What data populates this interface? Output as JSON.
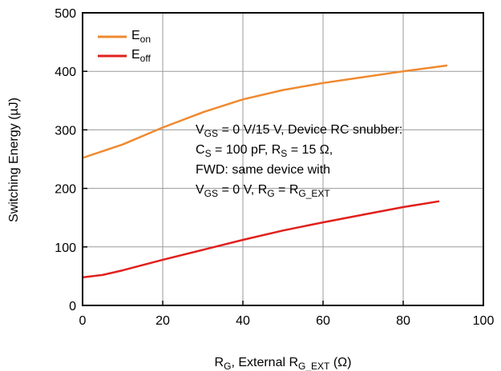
{
  "chart_data": {
    "type": "line",
    "title": "",
    "xlim": [
      0,
      100
    ],
    "ylim": [
      0,
      500
    ],
    "x_ticks": [
      0,
      20,
      40,
      60,
      80,
      100
    ],
    "y_ticks": [
      0,
      100,
      200,
      300,
      400,
      500
    ],
    "grid": true,
    "legend_position": "top-left",
    "ylabel": "Switching Energy (µJ)",
    "xlabel_parts": [
      {
        "text": "R",
        "sub": false
      },
      {
        "text": "G",
        "sub": true
      },
      {
        "text": ", External R",
        "sub": false
      },
      {
        "text": "G_EXT",
        "sub": true
      },
      {
        "text": " (Ω)",
        "sub": false
      }
    ],
    "series": [
      {
        "name": "E_on",
        "name_parts": [
          {
            "text": "E",
            "sub": false
          },
          {
            "text": "on",
            "sub": true
          }
        ],
        "color": "#f0892f",
        "points": [
          [
            0,
            252
          ],
          [
            10,
            275
          ],
          [
            20,
            304
          ],
          [
            30,
            330
          ],
          [
            40,
            352
          ],
          [
            50,
            368
          ],
          [
            60,
            380
          ],
          [
            70,
            390
          ],
          [
            80,
            400
          ],
          [
            91,
            410
          ]
        ]
      },
      {
        "name": "E_off",
        "name_parts": [
          {
            "text": "E",
            "sub": false
          },
          {
            "text": "off",
            "sub": true
          }
        ],
        "color": "#e0201d",
        "points": [
          [
            0,
            48
          ],
          [
            5,
            52
          ],
          [
            10,
            60
          ],
          [
            20,
            78
          ],
          [
            30,
            95
          ],
          [
            40,
            112
          ],
          [
            50,
            128
          ],
          [
            60,
            142
          ],
          [
            70,
            155
          ],
          [
            80,
            168
          ],
          [
            89,
            178
          ]
        ]
      }
    ],
    "annotation_lines": [
      [
        {
          "text": "V",
          "sub": false
        },
        {
          "text": "GS",
          "sub": true
        },
        {
          "text": " = 0 V/15 V, Device RC snubber:",
          "sub": false
        }
      ],
      [
        {
          "text": "C",
          "sub": false
        },
        {
          "text": "S",
          "sub": true
        },
        {
          "text": " = 100 pF, R",
          "sub": false
        },
        {
          "text": "S",
          "sub": true
        },
        {
          "text": " = 15 Ω,",
          "sub": false
        }
      ],
      [
        {
          "text": "FWD: same device with",
          "sub": false
        }
      ],
      [
        {
          "text": "V",
          "sub": false
        },
        {
          "text": "GS",
          "sub": true
        },
        {
          "text": " = 0 V, R",
          "sub": false
        },
        {
          "text": "G",
          "sub": true
        },
        {
          "text": " = R",
          "sub": false
        },
        {
          "text": "G_EXT",
          "sub": true
        }
      ]
    ]
  }
}
